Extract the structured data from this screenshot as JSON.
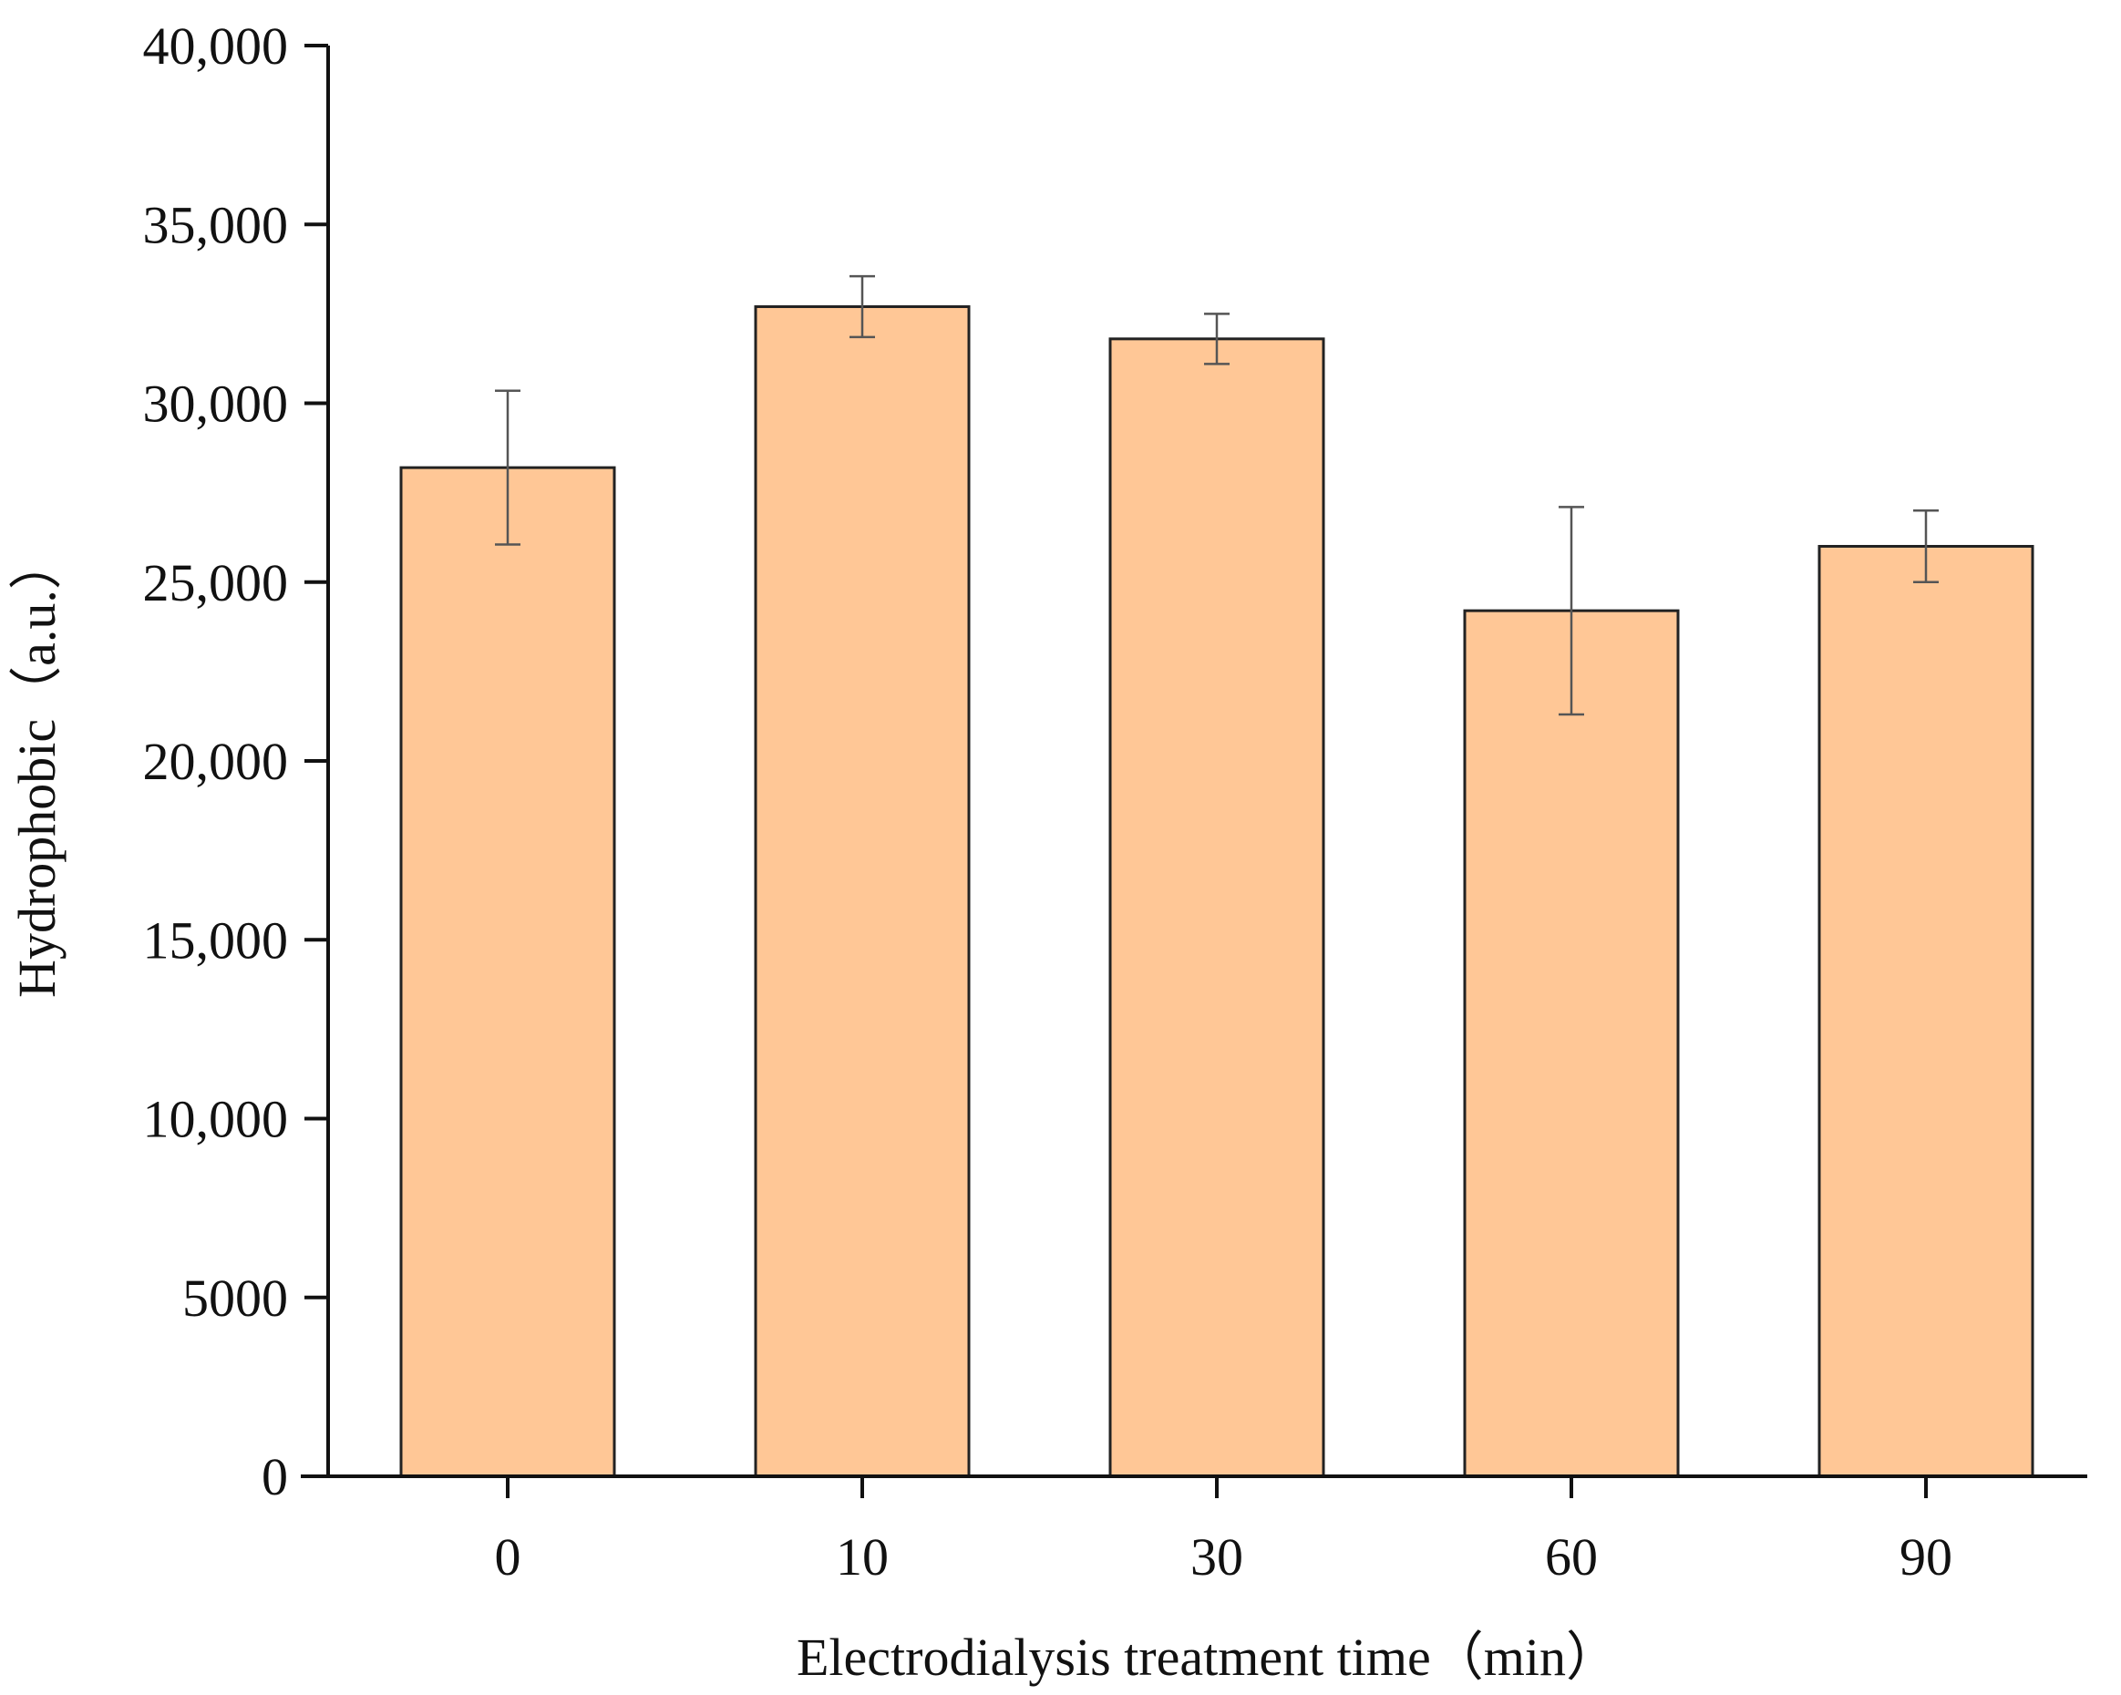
{
  "chart_data": {
    "type": "bar",
    "title": "",
    "xlabel": "Electrodialysis treatment time（min）",
    "ylabel": "Hydrophobic（a.u.）",
    "categories": [
      "0",
      "10",
      "30",
      "60",
      "90"
    ],
    "values": [
      28200,
      32700,
      31800,
      24200,
      26000
    ],
    "errors": [
      2150,
      850,
      700,
      2900,
      1000
    ],
    "ylim": [
      0,
      40000
    ],
    "yticks": [
      0,
      5000,
      10000,
      15000,
      20000,
      25000,
      30000,
      35000,
      40000
    ],
    "ytick_labels": [
      "0",
      "5000",
      "10,000",
      "15,000",
      "20,000",
      "25,000",
      "30,000",
      "35,000",
      "40,000"
    ],
    "grid": false,
    "legend": "none",
    "colors": {
      "bar_fill": "#FFC796",
      "bar_stroke": "#222222",
      "error_bar": "#555555",
      "axis": "#111111"
    }
  }
}
